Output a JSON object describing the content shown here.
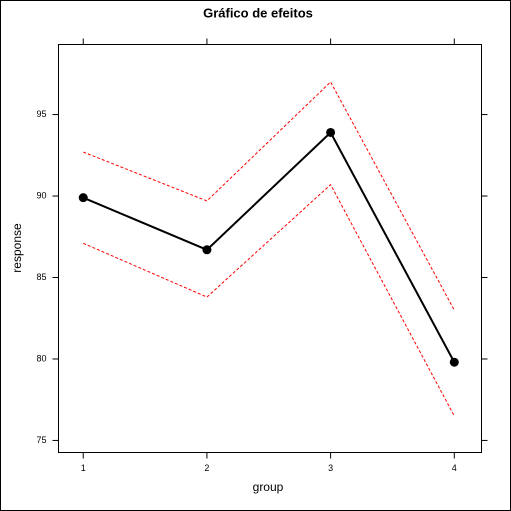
{
  "chart_data": {
    "type": "line",
    "title": "Gráfico de efeitos",
    "x_label": "group",
    "y_label": "response",
    "x": [
      1,
      2,
      3,
      4
    ],
    "series": [
      {
        "color": "#000000",
        "dashed": false,
        "markers": true,
        "values": [
          89.9,
          86.7,
          93.9,
          79.8
        ]
      },
      {
        "color": "#ff0000",
        "dashed": true,
        "markers": false,
        "values": [
          92.7,
          89.7,
          97.0,
          83.0
        ]
      },
      {
        "color": "#ff0000",
        "dashed": true,
        "markers": false,
        "values": [
          87.1,
          83.8,
          90.7,
          76.5
        ]
      }
    ],
    "xlim": [
      0.8,
      4.22
    ],
    "xticks": [
      1,
      2,
      3,
      4
    ],
    "ylim": [
      74.26,
      99.3
    ],
    "yticks": [
      75,
      80,
      85,
      90,
      95
    ]
  }
}
